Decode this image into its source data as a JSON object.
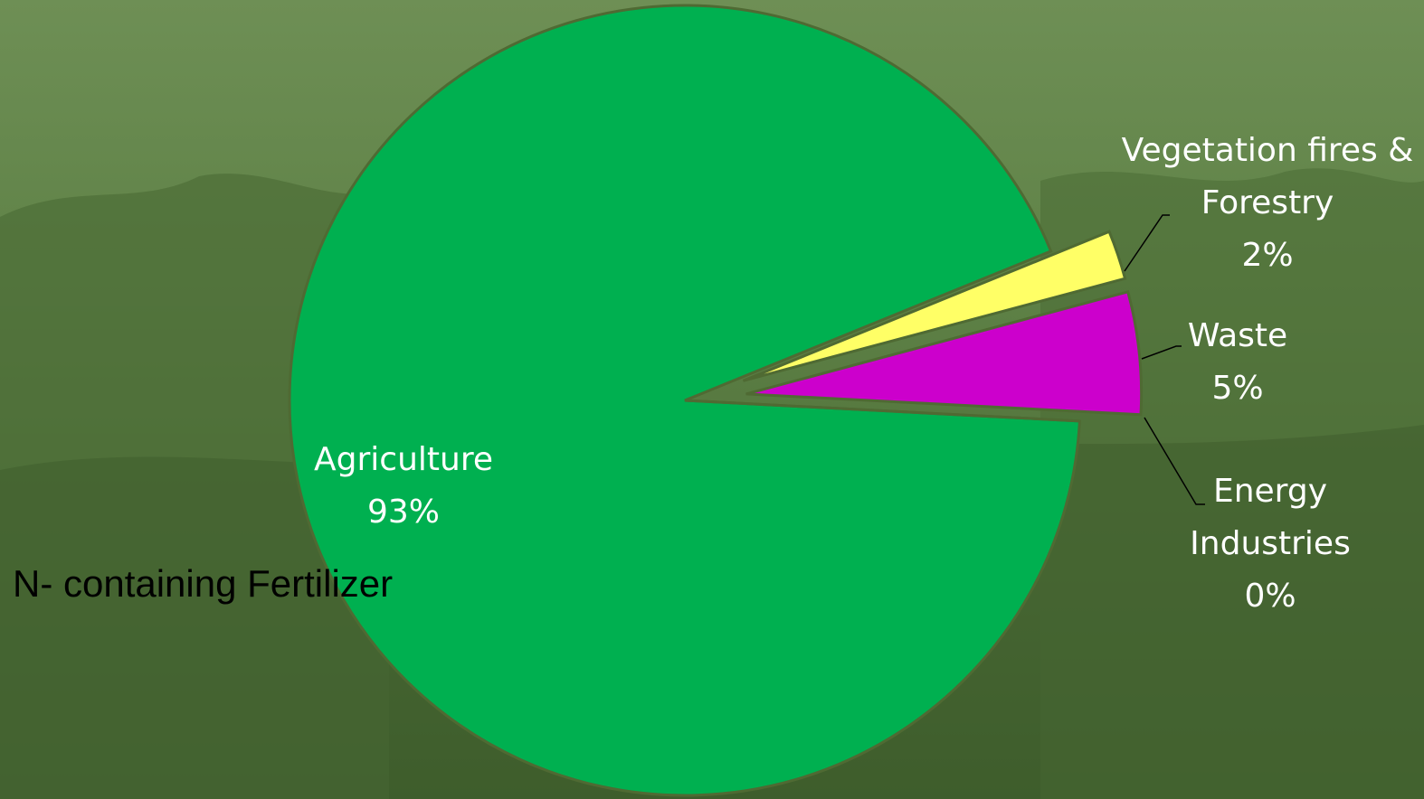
{
  "chart_data": {
    "type": "pie",
    "categories": [
      "Agriculture",
      "Vegetation fires & Forestry",
      "Waste",
      "Energy Industries"
    ],
    "values": [
      93,
      2,
      5,
      0
    ],
    "value_labels": [
      "93%",
      "2%",
      "5%",
      "0%"
    ],
    "colors": [
      "#00b050",
      "#ffff66",
      "#cc00cc",
      "#c00000"
    ],
    "annotation": "N- containing Fertilizer"
  }
}
